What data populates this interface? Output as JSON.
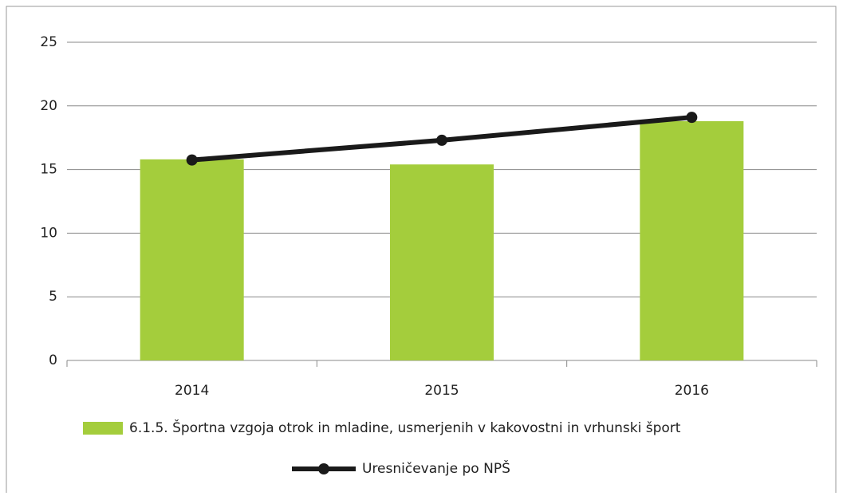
{
  "chart_data": {
    "type": "bar",
    "categories": [
      "2014",
      "2015",
      "2016"
    ],
    "series": [
      {
        "name": "6.1.5. Športna vzgoja otrok in mladine, usmerjenih v kakovostni in vrhunski šport",
        "type": "bar",
        "color": "#a4cd3c",
        "values": [
          15.8,
          15.4,
          18.8
        ]
      },
      {
        "name": "Uresničevanje po NPŠ",
        "type": "line",
        "color": "#1a1a1a",
        "values": [
          15.75,
          17.3,
          19.1
        ]
      }
    ],
    "ylim": [
      0,
      25
    ],
    "yticks": [
      0,
      5,
      10,
      15,
      20,
      25
    ],
    "grid": true,
    "legend": "bottom"
  }
}
